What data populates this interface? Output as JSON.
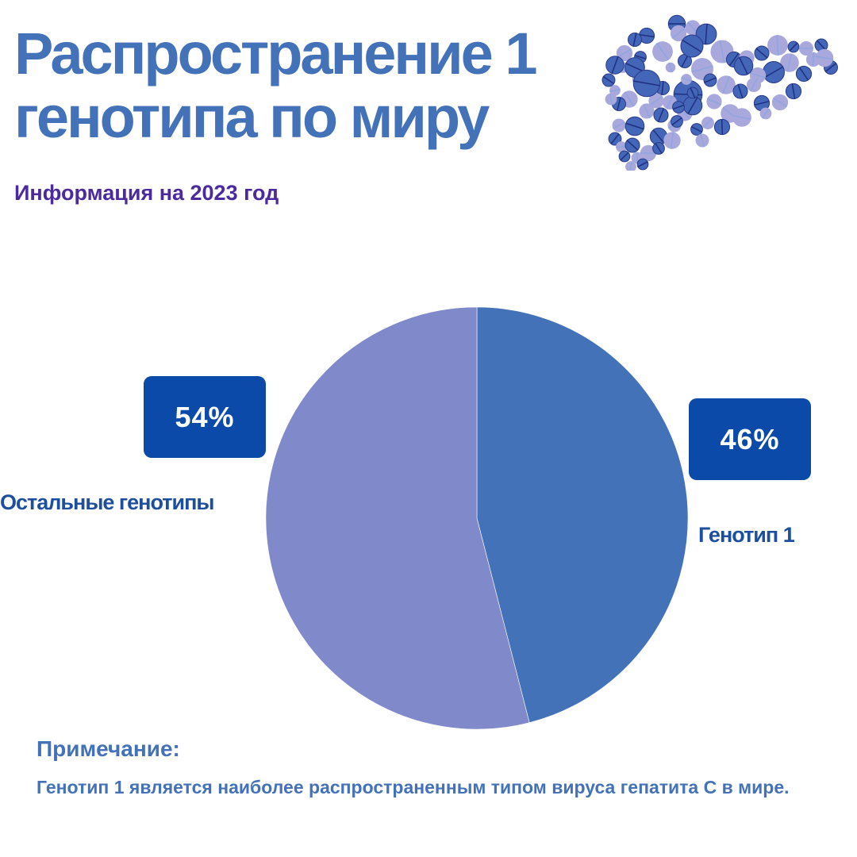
{
  "header": {
    "title_line1": "Распространение 1",
    "title_line2": "генотипа по миру",
    "subtitle": "Информация на 2023 год",
    "logo_icon": "liver-pills-icon"
  },
  "chart_data": {
    "type": "pie",
    "categories": [
      "Генотип 1",
      "Остальные генотипы"
    ],
    "values": [
      46,
      54
    ],
    "data_labels": [
      "46%",
      "54%"
    ],
    "colors": [
      "#4472b8",
      "#8089c9"
    ],
    "start": "top, clockwise"
  },
  "note": {
    "heading": "Примечание:",
    "text": "Генотип 1 является наиболее распространенным типом вируса гепатита С в мире."
  },
  "colors": {
    "title": "#4472b8",
    "subtitle": "#4b2a9e",
    "badge": "#0b4aa8"
  }
}
